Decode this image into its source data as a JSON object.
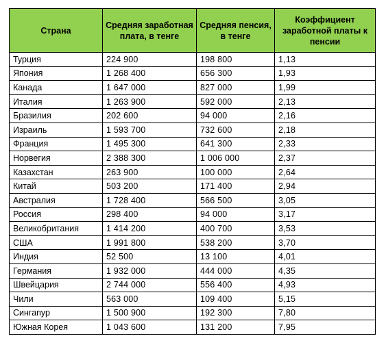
{
  "table": {
    "headers": [
      "Страна",
      "Средняя заработная плата, в тенге",
      "Средняя пенсия, в тенге",
      "Коэффициент заработной платы к пенсии"
    ],
    "rows": [
      [
        "Турция",
        "224 900",
        "198 800",
        "1,13"
      ],
      [
        "Япония",
        "1 268 400",
        "656 300",
        "1,93"
      ],
      [
        "Канада",
        "1 647 000",
        "827 000",
        "1,99"
      ],
      [
        "Италия",
        "1 263 900",
        "592 000",
        "2,13"
      ],
      [
        "Бразилия",
        "202 600",
        "94 000",
        "2,16"
      ],
      [
        "Израиль",
        "1 593 700",
        "732 600",
        "2,18"
      ],
      [
        "Франция",
        "1 495 300",
        "641 300",
        "2,33"
      ],
      [
        "Норвегия",
        "2 388 300",
        "1 006 000",
        "2,37"
      ],
      [
        "Казахстан",
        "263 900",
        "100 000",
        "2,64"
      ],
      [
        "Китай",
        "503 200",
        "171 400",
        "2,94"
      ],
      [
        "Австралия",
        "1 728 400",
        "566 500",
        "3,05"
      ],
      [
        "Россия",
        "298 400",
        "94 000",
        "3,17"
      ],
      [
        "Великобритания",
        "1 414 200",
        "400 700",
        "3,53"
      ],
      [
        "США",
        "1 991 800",
        "538 200",
        "3,70"
      ],
      [
        "Индия",
        "52 500",
        "13 100",
        "4,01"
      ],
      [
        "Германия",
        "1 932 000",
        "444 000",
        "4,35"
      ],
      [
        "Швейцария",
        "2 744 000",
        "556 400",
        "4,93"
      ],
      [
        "Чили",
        "563 000",
        "109 400",
        "5,15"
      ],
      [
        "Сингапур",
        "1 500 900",
        "192 300",
        "7,80"
      ],
      [
        "Южная Корея",
        "1 043 600",
        "131 200",
        "7,95"
      ]
    ]
  },
  "colors": {
    "header_bg": "#92d050",
    "border": "#000000"
  }
}
